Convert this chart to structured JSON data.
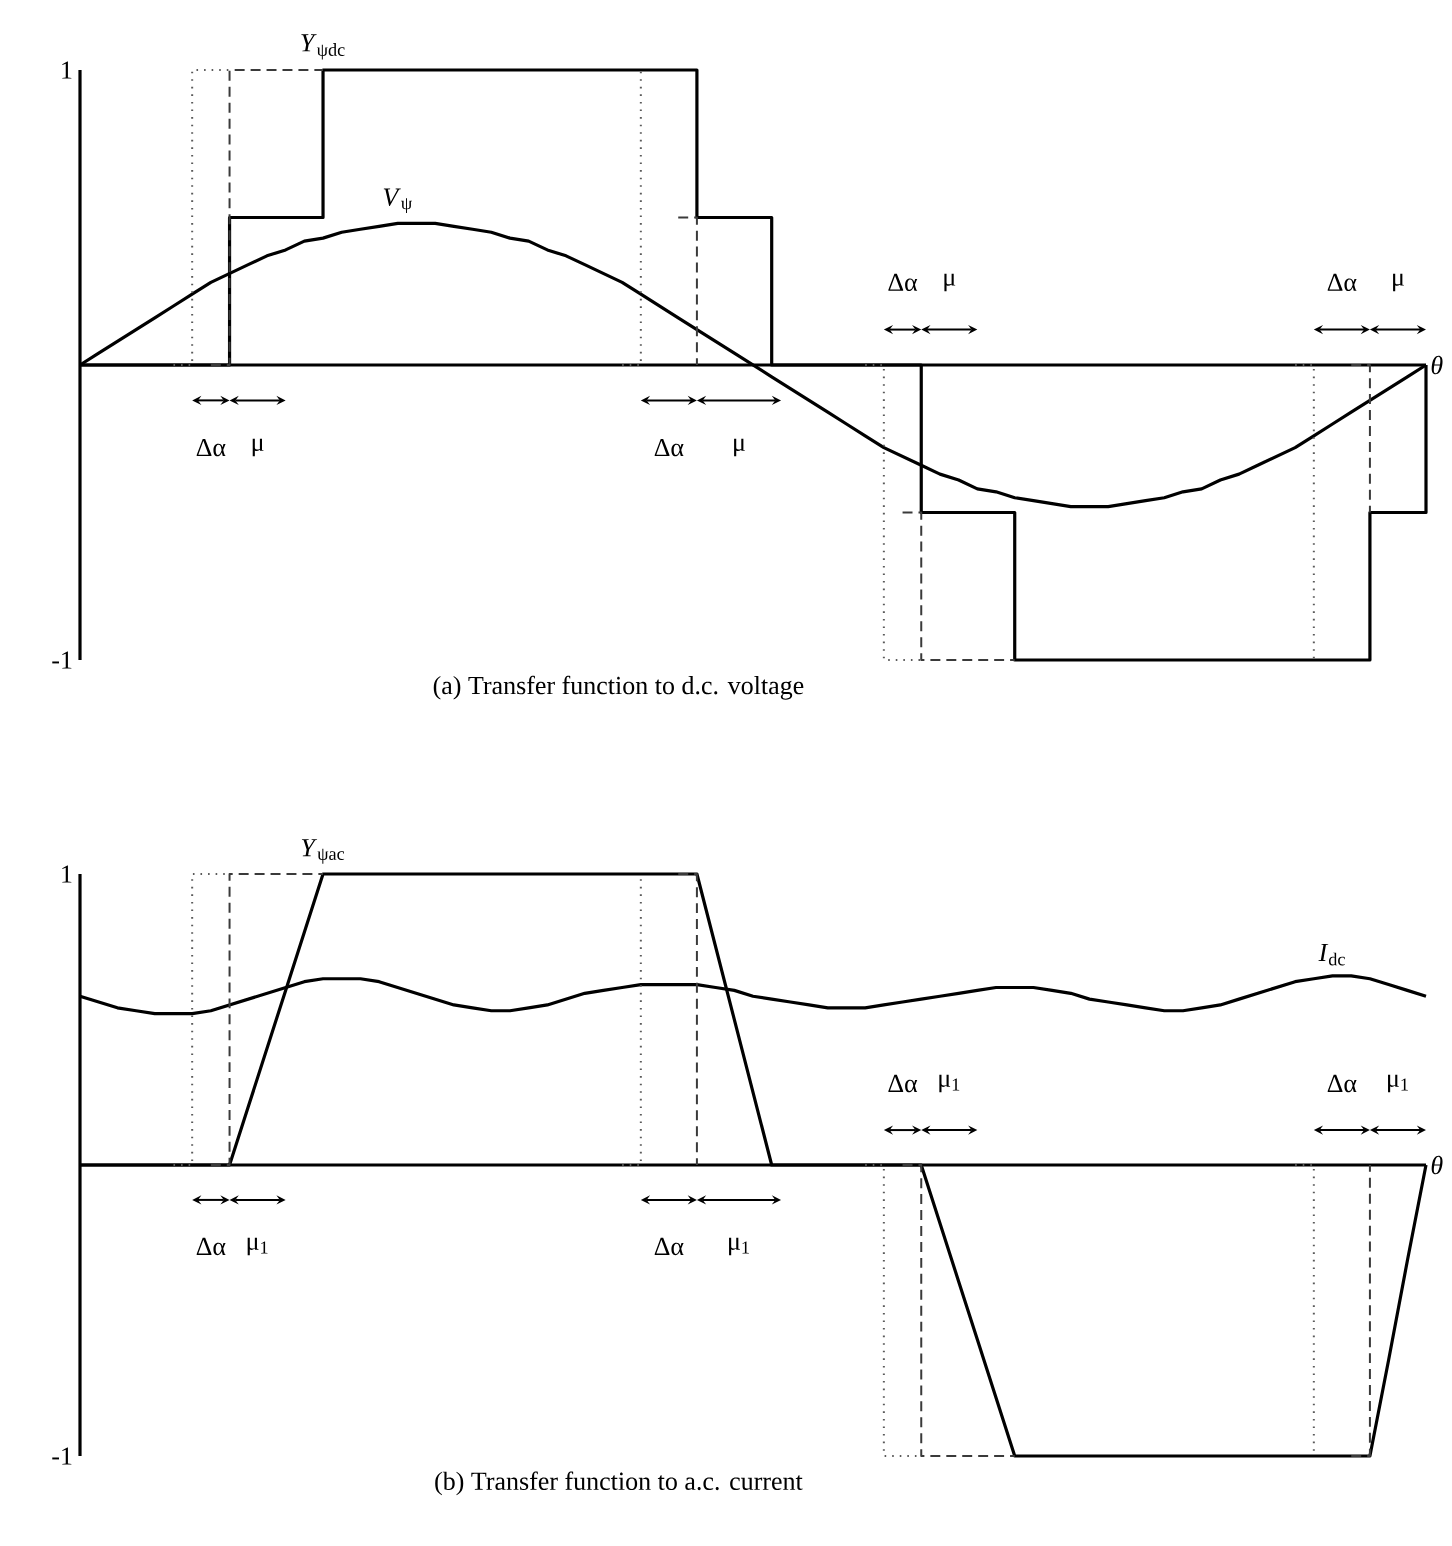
{
  "chart_data": [
    {
      "type": "line",
      "title": "(a) Transfer function to d.c. voltage",
      "xlabel": "*θ*",
      "ylim": [
        -1,
        1
      ],
      "yticks": [
        1,
        -1
      ],
      "tick_labels": "y",
      "categories": [
        null,
        null,
        null,
        null,
        null,
        null,
        null,
        null,
        null,
        null,
        null,
        null,
        null,
        null,
        null,
        null,
        null,
        null,
        null,
        null,
        null,
        null,
        null,
        null,
        null,
        null,
        null,
        null,
        null,
        null,
        null,
        null,
        null,
        null,
        null,
        null,
        null,
        null,
        null,
        null,
        null,
        null,
        null,
        null,
        null,
        null,
        null,
        null,
        null,
        null,
        null,
        null,
        null,
        null,
        null,
        null,
        null,
        null,
        null,
        null,
        null,
        null,
        null,
        null,
        null,
        null,
        null,
        null,
        null,
        null,
        null,
        null,
        null
      ],
      "series": [
        {
          "type": "step",
          "name": "*Y*$_{ψdc}$",
          "color": "#000000",
          "line_style": "solid",
          "values": [
            0,
            0,
            0,
            0,
            0,
            0,
            0,
            0,
            0.5,
            0.5,
            0.5,
            0.5,
            0.5,
            1,
            1,
            1,
            1,
            1,
            1,
            1,
            1,
            1,
            1,
            1,
            1,
            1,
            1,
            1,
            1,
            1,
            1,
            1,
            1,
            0.5,
            0.5,
            0.5,
            0.5,
            0,
            0,
            0,
            0,
            0,
            0,
            0,
            0,
            -0.5,
            -0.5,
            -0.5,
            -0.5,
            -0.5,
            -1,
            -1,
            -1,
            -1,
            -1,
            -1,
            -1,
            -1,
            -1,
            -1,
            -1,
            -1,
            -1,
            -1,
            -1,
            -1,
            -1,
            -1,
            -1,
            -0.5,
            -0.5,
            -0.5,
            0
          ]
        },
        {
          "name": "*V*$_{ψ}$",
          "color": "#000000",
          "line_style": "solid",
          "values": [
            0,
            0.04,
            0.08,
            0.12,
            0.16,
            0.2,
            0.24,
            0.28,
            0.31,
            0.34,
            0.37,
            0.39,
            0.42,
            0.43,
            0.45,
            0.46,
            0.47,
            0.48,
            0.48,
            0.48,
            0.47,
            0.46,
            0.45,
            0.43,
            0.42,
            0.39,
            0.37,
            0.34,
            0.31,
            0.28,
            0.24,
            0.2,
            0.16,
            0.12,
            0.08,
            0.04,
            0,
            -0.04,
            -0.08,
            -0.12,
            -0.16,
            -0.2,
            -0.24,
            -0.28,
            -0.31,
            -0.34,
            -0.37,
            -0.39,
            -0.42,
            -0.43,
            -0.45,
            -0.46,
            -0.47,
            -0.48,
            -0.48,
            -0.48,
            -0.47,
            -0.46,
            -0.45,
            -0.43,
            -0.42,
            -0.39,
            -0.37,
            -0.34,
            -0.31,
            -0.28,
            -0.24,
            -0.2,
            -0.16,
            -0.12,
            -0.08,
            -0.04,
            0
          ]
        },
        {
          "type": "step",
          "color": "#3a3a3a",
          "line_style": "dashed",
          "values": [
            null,
            null,
            null,
            null,
            null,
            null,
            null,
            0,
            1,
            1,
            1,
            1,
            1,
            1,
            null,
            null,
            null,
            null,
            null,
            null,
            null,
            null,
            null,
            null,
            null,
            null,
            null,
            null,
            null,
            null,
            null,
            null,
            0.5,
            0,
            null,
            null,
            null,
            null,
            null,
            null,
            null,
            null,
            null,
            null,
            -0.5,
            -1,
            -1,
            -1,
            -1,
            -1,
            -1,
            null,
            null,
            null,
            null,
            null,
            null,
            null,
            null,
            null,
            null,
            null,
            null,
            null,
            null,
            null,
            null,
            null,
            0,
            -0.5,
            null,
            null,
            null
          ]
        },
        {
          "type": "step",
          "color": "#5a5a5a",
          "line_style": "dotted",
          "values": [
            null,
            null,
            null,
            null,
            null,
            0,
            1,
            1,
            1,
            null,
            null,
            null,
            null,
            null,
            null,
            null,
            null,
            null,
            null,
            null,
            null,
            null,
            null,
            null,
            null,
            null,
            null,
            null,
            null,
            0,
            1,
            null,
            null,
            null,
            null,
            null,
            null,
            null,
            null,
            null,
            null,
            null,
            0,
            -1,
            -1,
            -1,
            null,
            null,
            null,
            null,
            null,
            null,
            null,
            null,
            null,
            null,
            null,
            null,
            null,
            null,
            null,
            null,
            null,
            null,
            null,
            0,
            -1,
            null,
            null,
            null,
            null,
            null,
            null
          ]
        }
      ],
      "annotations": [
        "Δα",
        "μ",
        "Δα",
        "μ",
        "Δα",
        "μ",
        "Δα",
        "μ"
      ]
    },
    {
      "type": "line",
      "title": "(b) Transfer function to a.c. current",
      "xlabel": "*θ*",
      "ylim": [
        -1,
        1
      ],
      "yticks": [
        1,
        -1
      ],
      "tick_labels": "y",
      "categories": [
        null,
        null,
        null,
        null,
        null,
        null,
        null,
        null,
        null,
        null,
        null,
        null,
        null,
        null,
        null,
        null,
        null,
        null,
        null,
        null,
        null,
        null,
        null,
        null,
        null,
        null,
        null,
        null,
        null,
        null,
        null,
        null,
        null,
        null,
        null,
        null,
        null,
        null,
        null,
        null,
        null,
        null,
        null,
        null,
        null,
        null,
        null,
        null,
        null,
        null,
        null,
        null,
        null,
        null,
        null,
        null,
        null,
        null,
        null,
        null,
        null,
        null,
        null,
        null,
        null,
        null,
        null,
        null,
        null,
        null,
        null,
        null,
        null
      ],
      "series": [
        {
          "name": "*Y*$_{ψac}$",
          "color": "#000000",
          "line_style": "solid",
          "values": [
            0,
            0,
            0,
            0,
            0,
            0,
            0,
            0,
            0,
            0.2,
            0.4,
            0.6,
            0.8,
            1,
            1,
            1,
            1,
            1,
            1,
            1,
            1,
            1,
            1,
            1,
            1,
            1,
            1,
            1,
            1,
            1,
            1,
            1,
            1,
            1,
            0.75,
            0.5,
            0.25,
            0,
            0,
            0,
            0,
            0,
            0,
            0,
            0,
            0,
            -0.2,
            -0.4,
            -0.6,
            -0.8,
            -1,
            -1,
            -1,
            -1,
            -1,
            -1,
            -1,
            -1,
            -1,
            -1,
            -1,
            -1,
            -1,
            -1,
            -1,
            -1,
            -1,
            -1,
            -1,
            -1,
            -0.67,
            -0.33,
            0
          ]
        },
        {
          "name": "*I*$_{dc}$",
          "color": "#000000",
          "line_style": "solid",
          "values": [
            0.58,
            0.56,
            0.54,
            0.53,
            0.52,
            0.52,
            0.52,
            0.53,
            0.55,
            0.57,
            0.59,
            0.61,
            0.63,
            0.64,
            0.64,
            0.64,
            0.63,
            0.61,
            0.59,
            0.57,
            0.55,
            0.54,
            0.53,
            0.53,
            0.54,
            0.55,
            0.57,
            0.59,
            0.6,
            0.61,
            0.62,
            0.62,
            0.62,
            0.62,
            0.61,
            0.6,
            0.58,
            0.57,
            0.56,
            0.55,
            0.54,
            0.54,
            0.54,
            0.55,
            0.56,
            0.57,
            0.58,
            0.59,
            0.6,
            0.61,
            0.61,
            0.61,
            0.6,
            0.59,
            0.57,
            0.56,
            0.55,
            0.54,
            0.53,
            0.53,
            0.54,
            0.55,
            0.57,
            0.59,
            0.61,
            0.63,
            0.64,
            0.65,
            0.65,
            0.64,
            0.62,
            0.6,
            0.58
          ]
        },
        {
          "type": "step",
          "color": "#3a3a3a",
          "line_style": "dashed",
          "values": [
            null,
            null,
            null,
            null,
            null,
            null,
            null,
            0,
            1,
            1,
            1,
            1,
            1,
            1,
            null,
            null,
            null,
            null,
            null,
            null,
            null,
            null,
            null,
            null,
            null,
            null,
            null,
            null,
            null,
            null,
            null,
            null,
            1,
            0,
            null,
            null,
            null,
            null,
            null,
            null,
            null,
            null,
            null,
            null,
            0,
            -1,
            -1,
            -1,
            -1,
            -1,
            -1,
            null,
            null,
            null,
            null,
            null,
            null,
            null,
            null,
            null,
            null,
            null,
            null,
            null,
            null,
            null,
            null,
            null,
            -1,
            0,
            null,
            null,
            null
          ]
        },
        {
          "type": "step",
          "color": "#5a5a5a",
          "line_style": "dotted",
          "values": [
            null,
            null,
            null,
            null,
            null,
            0,
            1,
            1,
            1,
            null,
            null,
            null,
            null,
            null,
            null,
            null,
            null,
            null,
            null,
            null,
            null,
            null,
            null,
            null,
            null,
            null,
            null,
            null,
            null,
            0,
            1,
            null,
            null,
            null,
            null,
            null,
            null,
            null,
            null,
            null,
            null,
            null,
            0,
            -1,
            -1,
            -1,
            null,
            null,
            null,
            null,
            null,
            null,
            null,
            null,
            null,
            null,
            null,
            null,
            null,
            null,
            null,
            null,
            null,
            null,
            null,
            0,
            -1,
            null,
            null,
            null,
            null,
            null,
            null
          ]
        }
      ],
      "annotations": [
        "Δα",
        "μ$_{1}$",
        "Δα",
        "μ$_{1}$",
        "Δα",
        "μ$_{1}$",
        "Δα",
        "μ$_{1}$"
      ]
    }
  ]
}
